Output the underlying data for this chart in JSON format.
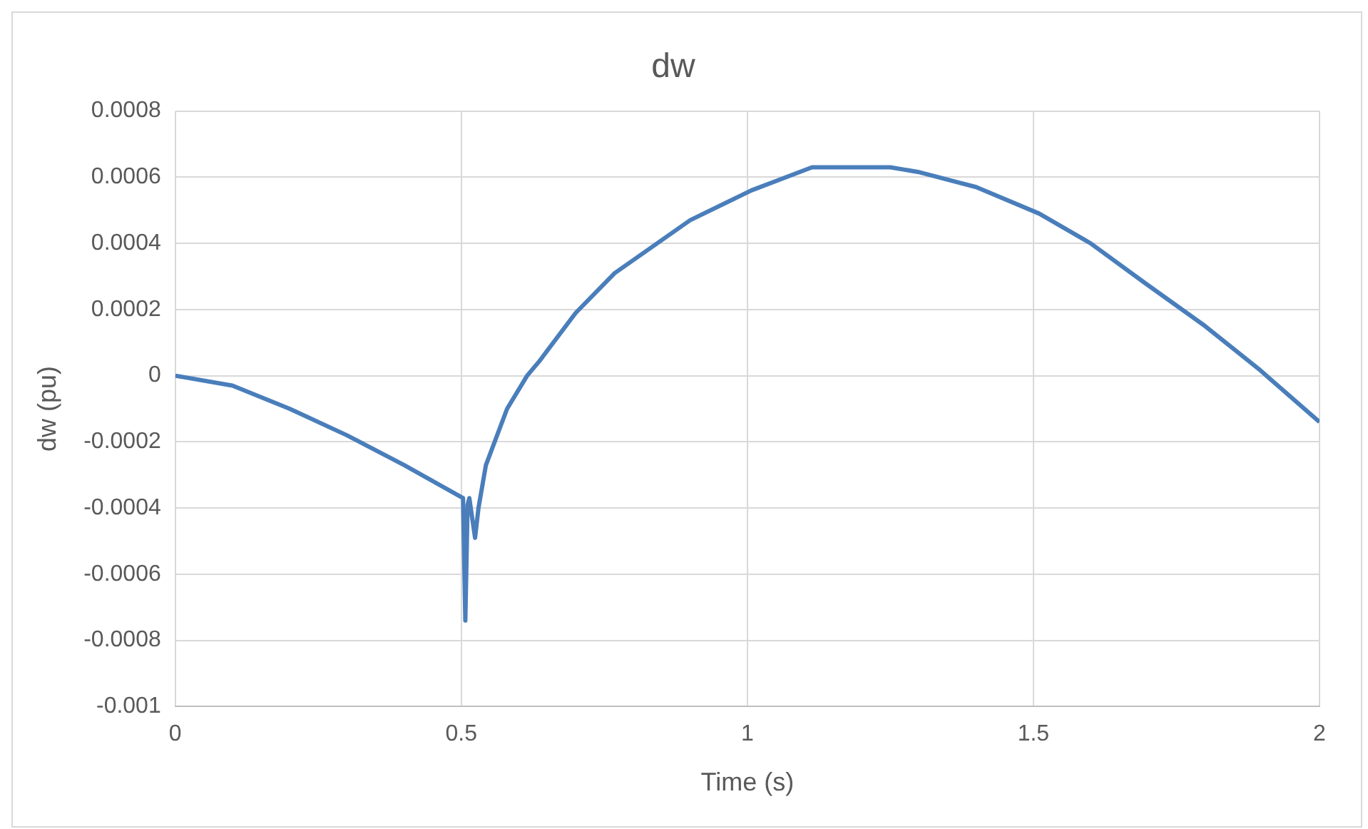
{
  "chart_data": {
    "type": "line",
    "title": "dw",
    "xlabel": "Time (s)",
    "ylabel": "dw (pu)",
    "x": [
      0,
      0.1,
      0.2,
      0.3,
      0.4,
      0.503,
      0.507,
      0.511,
      0.514,
      0.524,
      0.53,
      0.543,
      0.58,
      0.615,
      0.636,
      0.7,
      0.768,
      0.9,
      1.007,
      1.113,
      1.25,
      1.298,
      1.4,
      1.51,
      1.6,
      1.695,
      1.8,
      1.894,
      2
    ],
    "series": [
      {
        "color": "#4a7ebb",
        "values": [
          0,
          -3e-05,
          -0.0001,
          -0.00018,
          -0.00027,
          -0.00037,
          -0.00074,
          -0.00039,
          -0.00037,
          -0.00049,
          -0.0004,
          -0.00027,
          -0.0001,
          0,
          4.3e-05,
          0.00019,
          0.00031,
          0.00047,
          0.00056,
          0.00063,
          0.00063,
          0.000616,
          0.00057,
          0.00049,
          0.0004,
          0.00028,
          0.00015,
          2e-05,
          -0.00014
        ]
      }
    ],
    "xlim": [
      0,
      2
    ],
    "xticks": [
      0,
      0.5,
      1,
      1.5,
      2
    ],
    "ylim": [
      -0.001,
      0.0008
    ],
    "yticks": [
      -0.001,
      -0.0008,
      -0.0006,
      -0.0004,
      -0.0002,
      0,
      0.0002,
      0.0004,
      0.0006,
      0.0008
    ],
    "grid": true,
    "legend": false,
    "marker": "none",
    "line_style": "solid"
  }
}
